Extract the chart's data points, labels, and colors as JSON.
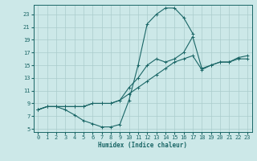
{
  "title": "",
  "xlabel": "Humidex (Indice chaleur)",
  "bg_color": "#cce8e8",
  "grid_color": "#aacccc",
  "line_color": "#1a6666",
  "xlim": [
    -0.5,
    23.5
  ],
  "ylim": [
    4.5,
    24.5
  ],
  "xticks": [
    0,
    1,
    2,
    3,
    4,
    5,
    6,
    7,
    8,
    9,
    10,
    11,
    12,
    13,
    14,
    15,
    16,
    17,
    18,
    19,
    20,
    21,
    22,
    23
  ],
  "yticks": [
    5,
    7,
    9,
    11,
    13,
    15,
    17,
    19,
    21,
    23
  ],
  "line1_x": [
    0,
    1,
    2,
    3,
    4,
    5,
    6,
    7,
    8,
    9,
    10,
    11,
    12,
    13,
    14,
    15,
    16,
    17
  ],
  "line1_y": [
    8.0,
    8.5,
    8.5,
    8.0,
    7.2,
    6.3,
    5.8,
    5.3,
    5.3,
    5.7,
    9.5,
    15.0,
    21.5,
    23.0,
    24.0,
    24.0,
    22.5,
    20.0
  ],
  "line2_x": [
    0,
    1,
    2,
    3,
    4,
    5,
    6,
    7,
    8,
    9,
    10,
    11,
    12,
    13,
    14,
    15,
    16,
    17,
    18,
    19,
    20,
    21,
    22,
    23
  ],
  "line2_y": [
    8.0,
    8.5,
    8.5,
    8.5,
    8.5,
    8.5,
    9.0,
    9.0,
    9.0,
    9.5,
    10.5,
    11.5,
    12.5,
    13.5,
    14.5,
    15.5,
    16.0,
    16.5,
    14.3,
    15.0,
    15.5,
    15.5,
    16.0,
    16.0
  ],
  "line3_x": [
    0,
    1,
    2,
    3,
    4,
    5,
    6,
    7,
    8,
    9,
    10,
    11,
    12,
    13,
    14,
    15,
    16,
    17,
    18,
    19,
    20,
    21,
    22,
    23
  ],
  "line3_y": [
    8.0,
    8.5,
    8.5,
    8.5,
    8.5,
    8.5,
    9.0,
    9.0,
    9.0,
    9.5,
    11.5,
    13.0,
    15.0,
    16.0,
    15.5,
    16.0,
    17.0,
    19.5,
    14.5,
    15.0,
    15.5,
    15.5,
    16.2,
    16.5
  ]
}
